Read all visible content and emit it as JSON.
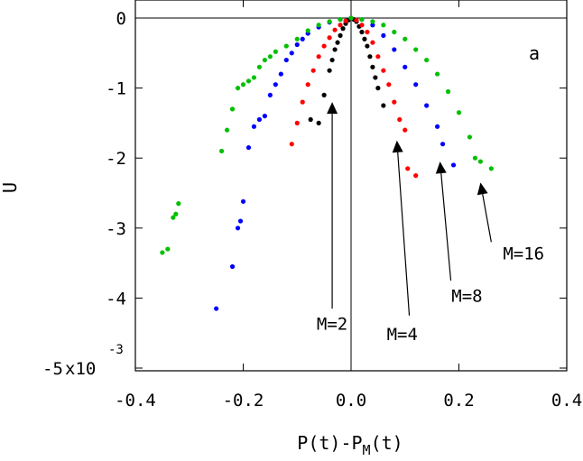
{
  "chart_data": {
    "type": "scatter",
    "title": "",
    "panel_label": "a",
    "xlabel_main": "P(t)-P",
    "xlabel_sub": "M",
    "xlabel_tail": "(t)",
    "ylabel": "U",
    "xlim": [
      -0.4,
      0.4
    ],
    "ylim": [
      -5,
      0
    ],
    "y_unit_factor": "x10",
    "y_unit_exp": "-3",
    "x_ticks": [
      {
        "value": -0.4,
        "label": "-0.4"
      },
      {
        "value": -0.2,
        "label": "-0.2"
      },
      {
        "value": 0.0,
        "label": "0.0"
      },
      {
        "value": 0.2,
        "label": "0.2"
      },
      {
        "value": 0.4,
        "label": "0.4"
      }
    ],
    "y_ticks": [
      {
        "value": 0,
        "label": "0"
      },
      {
        "value": -1,
        "label": "-1"
      },
      {
        "value": -2,
        "label": "-2"
      },
      {
        "value": -3,
        "label": "-3"
      },
      {
        "value": -4,
        "label": "-4"
      },
      {
        "value": -5,
        "label": "-5"
      }
    ],
    "legend": "none",
    "grid": false,
    "series": [
      {
        "color": "#000000",
        "points": [
          [
            -0.075,
            -1.45
          ],
          [
            -0.06,
            -1.5
          ],
          [
            -0.05,
            -1.1
          ],
          [
            -0.04,
            -0.75
          ],
          [
            -0.035,
            -0.6
          ],
          [
            -0.03,
            -0.45
          ],
          [
            -0.025,
            -0.35
          ],
          [
            -0.02,
            -0.25
          ],
          [
            -0.015,
            -0.15
          ],
          [
            -0.01,
            -0.08
          ],
          [
            -0.005,
            -0.03
          ],
          [
            0.0,
            0.0
          ],
          [
            0.005,
            -0.02
          ],
          [
            0.01,
            -0.05
          ],
          [
            0.015,
            -0.12
          ],
          [
            0.02,
            -0.2
          ],
          [
            0.025,
            -0.3
          ],
          [
            0.03,
            -0.4
          ],
          [
            0.035,
            -0.55
          ],
          [
            0.04,
            -0.7
          ],
          [
            0.045,
            -0.85
          ],
          [
            0.05,
            -1.0
          ],
          [
            0.06,
            -1.25
          ]
        ]
      },
      {
        "color": "#ff0000",
        "points": [
          [
            -0.11,
            -1.8
          ],
          [
            -0.1,
            -1.5
          ],
          [
            -0.09,
            -1.2
          ],
          [
            -0.08,
            -0.95
          ],
          [
            -0.07,
            -0.75
          ],
          [
            -0.06,
            -0.55
          ],
          [
            -0.05,
            -0.4
          ],
          [
            -0.04,
            -0.28
          ],
          [
            -0.03,
            -0.17
          ],
          [
            -0.02,
            -0.1
          ],
          [
            -0.01,
            -0.04
          ],
          [
            0.0,
            0.0
          ],
          [
            0.01,
            -0.03
          ],
          [
            0.02,
            -0.1
          ],
          [
            0.03,
            -0.2
          ],
          [
            0.04,
            -0.35
          ],
          [
            0.05,
            -0.55
          ],
          [
            0.06,
            -0.75
          ],
          [
            0.07,
            -0.95
          ],
          [
            0.08,
            -1.2
          ],
          [
            0.09,
            -1.45
          ],
          [
            0.1,
            -1.6
          ],
          [
            0.105,
            -2.15
          ],
          [
            0.12,
            -2.25
          ]
        ]
      },
      {
        "color": "#0000ff",
        "points": [
          [
            -0.25,
            -4.15
          ],
          [
            -0.22,
            -3.55
          ],
          [
            -0.21,
            -3.0
          ],
          [
            -0.205,
            -2.9
          ],
          [
            -0.2,
            -2.62
          ],
          [
            -0.19,
            -1.85
          ],
          [
            -0.18,
            -1.55
          ],
          [
            -0.17,
            -1.45
          ],
          [
            -0.16,
            -1.4
          ],
          [
            -0.15,
            -1.1
          ],
          [
            -0.14,
            -0.95
          ],
          [
            -0.13,
            -0.8
          ],
          [
            -0.12,
            -0.6
          ],
          [
            -0.11,
            -0.5
          ],
          [
            -0.1,
            -0.38
          ],
          [
            -0.09,
            -0.3
          ],
          [
            -0.08,
            -0.22
          ],
          [
            -0.06,
            -0.13
          ],
          [
            -0.04,
            -0.06
          ],
          [
            -0.02,
            -0.02
          ],
          [
            0.0,
            0.0
          ],
          [
            0.02,
            -0.02
          ],
          [
            0.04,
            -0.1
          ],
          [
            0.06,
            -0.25
          ],
          [
            0.08,
            -0.45
          ],
          [
            0.1,
            -0.7
          ],
          [
            0.12,
            -0.95
          ],
          [
            0.14,
            -1.25
          ],
          [
            0.16,
            -1.55
          ],
          [
            0.17,
            -1.8
          ],
          [
            0.19,
            -2.1
          ]
        ]
      },
      {
        "color": "#00c000",
        "points": [
          [
            -0.35,
            -3.35
          ],
          [
            -0.34,
            -3.3
          ],
          [
            -0.33,
            -2.85
          ],
          [
            -0.325,
            -2.8
          ],
          [
            -0.32,
            -2.65
          ],
          [
            -0.24,
            -1.9
          ],
          [
            -0.23,
            -1.6
          ],
          [
            -0.22,
            -1.3
          ],
          [
            -0.21,
            -1.0
          ],
          [
            -0.2,
            -0.95
          ],
          [
            -0.19,
            -0.9
          ],
          [
            -0.18,
            -0.85
          ],
          [
            -0.17,
            -0.7
          ],
          [
            -0.16,
            -0.6
          ],
          [
            -0.15,
            -0.55
          ],
          [
            -0.14,
            -0.48
          ],
          [
            -0.12,
            -0.4
          ],
          [
            -0.1,
            -0.3
          ],
          [
            -0.08,
            -0.18
          ],
          [
            -0.06,
            -0.1
          ],
          [
            -0.04,
            -0.05
          ],
          [
            -0.02,
            -0.02
          ],
          [
            0.0,
            0.0
          ],
          [
            0.02,
            -0.02
          ],
          [
            0.04,
            -0.05
          ],
          [
            0.06,
            -0.1
          ],
          [
            0.08,
            -0.2
          ],
          [
            0.1,
            -0.3
          ],
          [
            0.12,
            -0.45
          ],
          [
            0.14,
            -0.6
          ],
          [
            0.16,
            -0.8
          ],
          [
            0.18,
            -1.05
          ],
          [
            0.2,
            -1.35
          ],
          [
            0.22,
            -1.7
          ],
          [
            0.23,
            -2.0
          ],
          [
            0.24,
            -2.05
          ],
          [
            0.26,
            -2.15
          ]
        ]
      }
    ],
    "annotations": [
      {
        "text": "M=2",
        "label_x": -0.035,
        "label_y": -4.45,
        "tail_x": -0.035,
        "tail_y": -4.15,
        "head_x": -0.035,
        "head_y": -1.2
      },
      {
        "text": "M=4",
        "label_x": 0.095,
        "label_y": -4.6,
        "tail_x": 0.108,
        "tail_y": -4.25,
        "head_x": 0.085,
        "head_y": -1.75
      },
      {
        "text": "M=8",
        "label_x": 0.215,
        "label_y": -4.05,
        "tail_x": 0.185,
        "tail_y": -3.75,
        "head_x": 0.165,
        "head_y": -2.05
      },
      {
        "text": "M=16",
        "label_x": 0.32,
        "label_y": -3.45,
        "tail_x": 0.26,
        "tail_y": -3.2,
        "head_x": 0.24,
        "head_y": -2.35
      }
    ]
  }
}
